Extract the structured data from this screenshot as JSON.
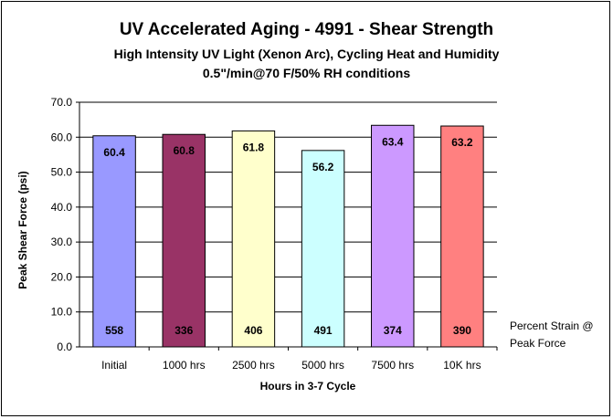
{
  "chart_data": {
    "type": "bar",
    "title": "UV Accelerated Aging - 4991 - Shear Strength",
    "subtitle_lines": [
      "High Intensity UV Light (Xenon Arc), Cycling Heat and Humidity",
      "0.5\"/min@70 F/50% RH conditions"
    ],
    "xlabel": "Hours in 3-7 Cycle",
    "ylabel": "Peak Shear Force (psi)",
    "ylim": [
      0,
      70
    ],
    "ytick_step": 10,
    "ytick_labels": [
      "0.0",
      "10.0",
      "20.0",
      "30.0",
      "40.0",
      "50.0",
      "60.0",
      "70.0"
    ],
    "grid": true,
    "legend": null,
    "categories": [
      "Initial",
      "1000 hrs",
      "2500 hrs",
      "5000 hrs",
      "7500 hrs",
      "10K hrs"
    ],
    "values": [
      60.4,
      60.8,
      61.8,
      56.2,
      63.4,
      63.2
    ],
    "value_labels": [
      "60.4",
      "60.8",
      "61.8",
      "56.2",
      "63.4",
      "63.2"
    ],
    "percent_strain_at_peak_force": [
      "558",
      "336",
      "406",
      "491",
      "374",
      "390"
    ],
    "bar_colors": [
      "#9999ff",
      "#993366",
      "#ffffcc",
      "#ccffff",
      "#cc99ff",
      "#ff8080"
    ],
    "side_note_lines": [
      "Percent Strain @",
      "Peak Force"
    ]
  }
}
